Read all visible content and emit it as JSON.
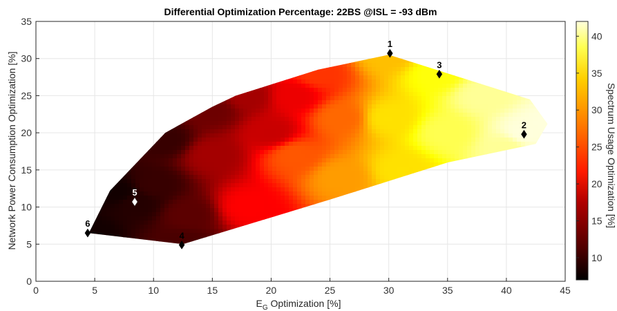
{
  "chart_data": {
    "type": "heatmap",
    "title": "Differential Optimization Percentage: 22BS @ISL = -93 dBm",
    "xlabel_main": "E",
    "xlabel_sub": "G",
    "xlabel_rest": " Optimization [%]",
    "ylabel": "Network Power Consumption Optimization [%]",
    "colorbar_label": "Spectrum Usage Optimization [%]",
    "xlim": [
      0,
      45
    ],
    "ylim": [
      0,
      35
    ],
    "clim": [
      7,
      42
    ],
    "x_ticks": [
      "0",
      "5",
      "10",
      "15",
      "20",
      "25",
      "30",
      "35",
      "40",
      "45"
    ],
    "y_ticks": [
      "0",
      "5",
      "10",
      "15",
      "20",
      "25",
      "30",
      "35"
    ],
    "colorbar_ticks": [
      "10",
      "15",
      "20",
      "25",
      "30",
      "35",
      "40"
    ],
    "colormap": "hot",
    "grid": true,
    "region_hull": [
      [
        4.5,
        6.5
      ],
      [
        6.3,
        12.2
      ],
      [
        11,
        20
      ],
      [
        15,
        23.5
      ],
      [
        17,
        25
      ],
      [
        24,
        28.5
      ],
      [
        30,
        30.5
      ],
      [
        34,
        28.5
      ],
      [
        42,
        24.5
      ],
      [
        43.5,
        21.2
      ],
      [
        42.5,
        18.5
      ],
      [
        35,
        16
      ],
      [
        25,
        11
      ],
      [
        12.5,
        5
      ],
      [
        4.5,
        6.5
      ]
    ],
    "surface_samples": [
      {
        "x": 4.5,
        "y": 6.5,
        "z": 8
      },
      {
        "x": 8.5,
        "y": 10.5,
        "z": 9
      },
      {
        "x": 12.5,
        "y": 5,
        "z": 11
      },
      {
        "x": 7,
        "y": 12,
        "z": 8
      },
      {
        "x": 11,
        "y": 19,
        "z": 10
      },
      {
        "x": 15,
        "y": 23,
        "z": 13
      },
      {
        "x": 18,
        "y": 25,
        "z": 16
      },
      {
        "x": 15,
        "y": 17,
        "z": 16
      },
      {
        "x": 18,
        "y": 10,
        "z": 21
      },
      {
        "x": 22,
        "y": 25,
        "z": 20
      },
      {
        "x": 24,
        "y": 28,
        "z": 24
      },
      {
        "x": 22,
        "y": 17,
        "z": 26
      },
      {
        "x": 26,
        "y": 22,
        "z": 27
      },
      {
        "x": 26,
        "y": 14,
        "z": 30
      },
      {
        "x": 30,
        "y": 30.5,
        "z": 32
      },
      {
        "x": 30,
        "y": 22,
        "z": 34
      },
      {
        "x": 31,
        "y": 15,
        "z": 34
      },
      {
        "x": 34,
        "y": 28,
        "z": 36
      },
      {
        "x": 35,
        "y": 20,
        "z": 38
      },
      {
        "x": 38,
        "y": 25,
        "z": 40
      },
      {
        "x": 41.5,
        "y": 20,
        "z": 42
      },
      {
        "x": 43.5,
        "y": 21.2,
        "z": 42
      },
      {
        "x": 40,
        "y": 18,
        "z": 40
      },
      {
        "x": 20,
        "y": 20,
        "z": 18
      },
      {
        "x": 10,
        "y": 13,
        "z": 10
      },
      {
        "x": 13,
        "y": 9,
        "z": 12
      }
    ],
    "points": [
      {
        "label": "1",
        "x": 30.1,
        "y": 30.7,
        "marker_color": "#000000"
      },
      {
        "label": "2",
        "x": 41.5,
        "y": 19.8,
        "marker_color": "#000000"
      },
      {
        "label": "3",
        "x": 34.3,
        "y": 27.9,
        "marker_color": "#000000"
      },
      {
        "label": "4",
        "x": 12.4,
        "y": 4.9,
        "marker_color": "#000000"
      },
      {
        "label": "5",
        "x": 8.4,
        "y": 10.7,
        "marker_color": "#ffffff"
      },
      {
        "label": "6",
        "x": 4.4,
        "y": 6.5,
        "marker_color": "#000000"
      }
    ]
  }
}
